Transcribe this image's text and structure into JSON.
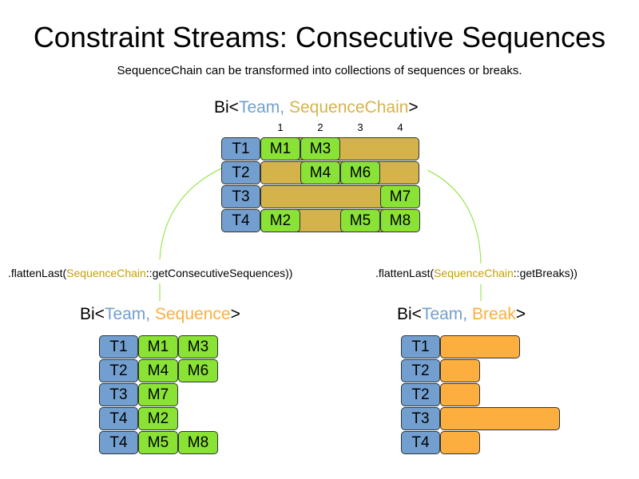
{
  "title": "Constraint Streams: Consecutive Sequences",
  "subtitle": "SequenceChain can be transformed into collections of sequences or breaks.",
  "colors": {
    "team": "#729fcf",
    "sequence_chain": "#d4b44a",
    "match": "#8ae234",
    "sequence_break": "#fcaf3e",
    "connector": "#8ae234"
  },
  "top": {
    "type_prefix": "Bi<",
    "type_a": "Team",
    "type_sep": ", ",
    "type_b": "SequenceChain",
    "type_suffix": ">",
    "columns": [
      "1",
      "2",
      "3",
      "4"
    ],
    "rows": [
      {
        "team": "T1",
        "matches": [
          {
            "label": "M1",
            "slot": 1
          },
          {
            "label": "M3",
            "slot": 2
          }
        ]
      },
      {
        "team": "T2",
        "matches": [
          {
            "label": "M4",
            "slot": 2
          },
          {
            "label": "M6",
            "slot": 3
          }
        ]
      },
      {
        "team": "T3",
        "matches": [
          {
            "label": "M7",
            "slot": 4
          }
        ]
      },
      {
        "team": "T4",
        "matches": [
          {
            "label": "M2",
            "slot": 1
          },
          {
            "label": "M5",
            "slot": 3
          },
          {
            "label": "M8",
            "slot": 4
          }
        ]
      }
    ]
  },
  "left_call": {
    "prefix": ".flattenLast(",
    "cls": "SequenceChain",
    "suffix": "::getConsecutiveSequences))"
  },
  "right_call": {
    "prefix": ".flattenLast(",
    "cls": "SequenceChain",
    "suffix": "::getBreaks))"
  },
  "sequences": {
    "type_prefix": "Bi<",
    "type_a": "Team",
    "type_sep": ", ",
    "type_b": "Sequence",
    "type_suffix": ">",
    "rows": [
      {
        "team": "T1",
        "matches": [
          "M1",
          "M3"
        ]
      },
      {
        "team": "T2",
        "matches": [
          "M4",
          "M6"
        ]
      },
      {
        "team": "T3",
        "matches": [
          "M7"
        ]
      },
      {
        "team": "T4",
        "matches": [
          "M2"
        ]
      },
      {
        "team": "T4",
        "matches": [
          "M5",
          "M8"
        ]
      }
    ]
  },
  "breaks": {
    "type_prefix": "Bi<",
    "type_a": "Team",
    "type_sep": ", ",
    "type_b": "Break",
    "type_suffix": ">",
    "rows": [
      {
        "team": "T1",
        "length": 2
      },
      {
        "team": "T2",
        "length": 1
      },
      {
        "team": "T2",
        "length": 1
      },
      {
        "team": "T3",
        "length": 3
      },
      {
        "team": "T4",
        "length": 1
      }
    ]
  }
}
